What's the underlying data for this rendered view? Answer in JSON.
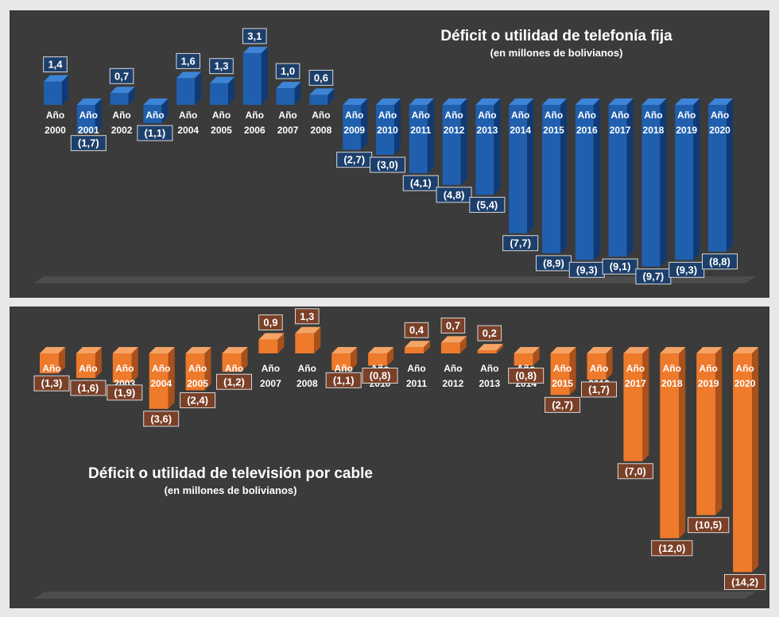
{
  "colors": {
    "blue_front": "#1f5fae",
    "blue_side": "#0f3a75",
    "blue_top": "#3e84d6",
    "blue_label_bg": "#1d3f6b",
    "orange_front": "#ee7a2c",
    "orange_side": "#a9501b",
    "orange_top": "#f5a466",
    "orange_label_bg": "#7a4028",
    "panel_bg": "#3b3b3b",
    "floor": "#4d4d4d"
  },
  "chart_data": [
    {
      "type": "bar",
      "title": "Déficit o utilidad de telefonía fija",
      "subtitle": "(en millones de bolivianos)",
      "categories": [
        "Año 2000",
        "Año 2001",
        "Año 2002",
        "Año 2003",
        "Año 2004",
        "Año 2005",
        "Año 2006",
        "Año 2007",
        "Año 2008",
        "Año 2009",
        "Año 2010",
        "Año 2011",
        "Año 2012",
        "Año 2013",
        "Año 2014",
        "Año 2015",
        "Año 2016",
        "Año 2017",
        "Año 2018",
        "Año 2019",
        "Año 2020"
      ],
      "values": [
        1.4,
        -1.7,
        0.7,
        -1.1,
        1.6,
        1.3,
        3.1,
        1.0,
        0.6,
        -2.7,
        -3.0,
        -4.1,
        -4.8,
        -5.4,
        -7.7,
        -8.9,
        -9.3,
        -9.1,
        -9.7,
        -9.3,
        -8.8
      ],
      "labels": [
        "1,4",
        "(1,7)",
        "0,7",
        "(1,1)",
        "1,6",
        "1,3",
        "3,1",
        "1,0",
        "0,6",
        "(2,7)",
        "(3,0)",
        "(4,1)",
        "(4,8)",
        "(5,4)",
        "(7,7)",
        "(8,9)",
        "(9,3)",
        "(9,1)",
        "(9,7)",
        "(9,3)",
        "(8,8)"
      ]
    },
    {
      "type": "bar",
      "title": "Déficit o utilidad de televisión por cable",
      "subtitle": "(en millones de bolivianos)",
      "categories": [
        "Año 2001",
        "Año 2002",
        "Año 2003",
        "Año 2004",
        "Año 2005",
        "Año 2006",
        "Año 2007",
        "Año 2008",
        "Año 2009",
        "Año 2010",
        "Año 2011",
        "Año 2012",
        "Año 2013",
        "Año 2014",
        "Año 2015",
        "Año 2016",
        "Año 2017",
        "Año 2018",
        "Año 2019",
        "Año 2020"
      ],
      "values": [
        -1.3,
        -1.6,
        -1.9,
        -3.6,
        -2.4,
        -1.2,
        0.9,
        1.3,
        -1.1,
        -0.8,
        0.4,
        0.7,
        0.2,
        -0.8,
        -2.7,
        -1.7,
        -7.0,
        -12.0,
        -10.5,
        -14.2
      ],
      "labels": [
        "(1,3)",
        "(1,6)",
        "(1,9)",
        "(3,6)",
        "(2,4)",
        "(1,2)",
        "0,9",
        "1,3",
        "(1,1)",
        "(0,8)",
        "0,4",
        "0,7",
        "0,2",
        "(0,8)",
        "(2,7)",
        "(1,7)",
        "(7,0)",
        "(12,0)",
        "(10,5)",
        "(14,2)"
      ]
    }
  ]
}
